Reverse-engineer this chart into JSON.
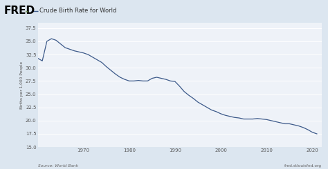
{
  "title": "Crude Birth Rate for World",
  "ylabel": "Births per 1,000 People",
  "source_left": "Source: World Bank",
  "source_right": "fred.stlouisfed.org",
  "fred_label": "FRED",
  "line_color": "#3d5a8a",
  "background_color": "#dce6f0",
  "plot_background": "#eef2f8",
  "grid_color": "#ffffff",
  "ylim": [
    15.0,
    38.5
  ],
  "yticks": [
    15.0,
    17.5,
    20.0,
    22.5,
    25.0,
    27.5,
    30.0,
    32.5,
    35.0,
    37.5
  ],
  "xlim": [
    1960,
    2022
  ],
  "xticks": [
    1970,
    1980,
    1990,
    2000,
    2010,
    2020
  ],
  "data": {
    "years": [
      1960,
      1961,
      1962,
      1963,
      1964,
      1965,
      1966,
      1967,
      1968,
      1969,
      1970,
      1971,
      1972,
      1973,
      1974,
      1975,
      1976,
      1977,
      1978,
      1979,
      1980,
      1981,
      1982,
      1983,
      1984,
      1985,
      1986,
      1987,
      1988,
      1989,
      1990,
      1991,
      1992,
      1993,
      1994,
      1995,
      1996,
      1997,
      1998,
      1999,
      2000,
      2001,
      2002,
      2003,
      2004,
      2005,
      2006,
      2007,
      2008,
      2009,
      2010,
      2011,
      2012,
      2013,
      2014,
      2015,
      2016,
      2017,
      2018,
      2019,
      2020,
      2021
    ],
    "values": [
      31.8,
      31.3,
      35.0,
      35.5,
      35.2,
      34.5,
      33.8,
      33.5,
      33.2,
      33.0,
      32.8,
      32.5,
      32.0,
      31.5,
      31.0,
      30.2,
      29.5,
      28.8,
      28.2,
      27.8,
      27.5,
      27.5,
      27.6,
      27.5,
      27.5,
      28.0,
      28.2,
      28.0,
      27.8,
      27.5,
      27.4,
      26.5,
      25.5,
      24.8,
      24.2,
      23.5,
      23.0,
      22.5,
      22.0,
      21.7,
      21.3,
      21.0,
      20.8,
      20.6,
      20.5,
      20.3,
      20.3,
      20.3,
      20.4,
      20.3,
      20.2,
      20.0,
      19.8,
      19.6,
      19.4,
      19.4,
      19.2,
      19.0,
      18.7,
      18.3,
      17.8,
      17.5
    ]
  }
}
